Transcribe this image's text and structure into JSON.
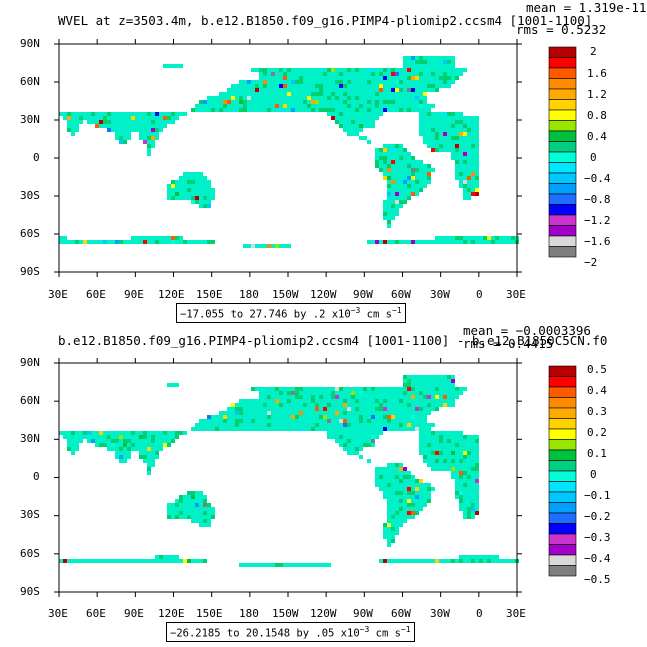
{
  "colors": {
    "palette": [
      "#7f7f7f",
      "#d9d9d9",
      "#a000c8",
      "#cc33cc",
      "#0000ff",
      "#1e6eff",
      "#00a0ff",
      "#00c8ff",
      "#00e6ff",
      "#00ffd8",
      "#00d080",
      "#00c040",
      "#99e600",
      "#ffff00",
      "#ffd200",
      "#ffaa00",
      "#ff8c00",
      "#ff5a00",
      "#ff0000",
      "#b40000"
    ],
    "ocean_fill": "#ffffff",
    "land_base": "#00f0c8",
    "land_alt": "#00d070"
  },
  "panels": [
    {
      "title": "WVEL at z=3503.4m, b.e12.B1850.f09_g16.PIMP4-pliomip2.ccsm4 [1001-1100]",
      "mean": "mean = 1.319e-11",
      "rms": "rms = 0.5232",
      "range_main": "−17.055 to 27.746 by .2 x10",
      "range_exp": "−3",
      "range_unit": " cm s",
      "range_unit_exp": "−1",
      "colorbar_labels": [
        "2",
        "1.6",
        "1.2",
        "0.8",
        "0.4",
        "0",
        "−0.4",
        "−0.8",
        "−1.2",
        "−1.6",
        "−2"
      ],
      "lat_labels": [
        "90N",
        "60N",
        "30N",
        "0",
        "30S",
        "60S",
        "90S"
      ],
      "lon_labels": [
        "30E",
        "60E",
        "90E",
        "120E",
        "150E",
        "180",
        "150W",
        "120W",
        "90W",
        "60W",
        "30W",
        "0",
        "30E"
      ]
    },
    {
      "title": "b.e12.B1850.f09_g16.PIMP4-pliomip2.ccsm4 [1001-1100] - b.e12.B1850C5CN.f0",
      "mean": "mean = −0.0003396",
      "rms": "rms = 0.4415",
      "range_main": "−26.2185 to 20.1548 by .05 x10",
      "range_exp": "−3",
      "range_unit": " cm s",
      "range_unit_exp": "−1",
      "colorbar_labels": [
        "0.5",
        "0.4",
        "0.3",
        "0.2",
        "0.1",
        "0",
        "−0.1",
        "−0.2",
        "−0.3",
        "−0.4",
        "−0.5"
      ],
      "lat_labels": [
        "90N",
        "60N",
        "30N",
        "0",
        "30S",
        "60S",
        "90S"
      ],
      "lon_labels": [
        "30E",
        "60E",
        "90E",
        "120E",
        "150E",
        "180",
        "150W",
        "120W",
        "90W",
        "60W",
        "30W",
        "0",
        "30E"
      ]
    }
  ]
}
